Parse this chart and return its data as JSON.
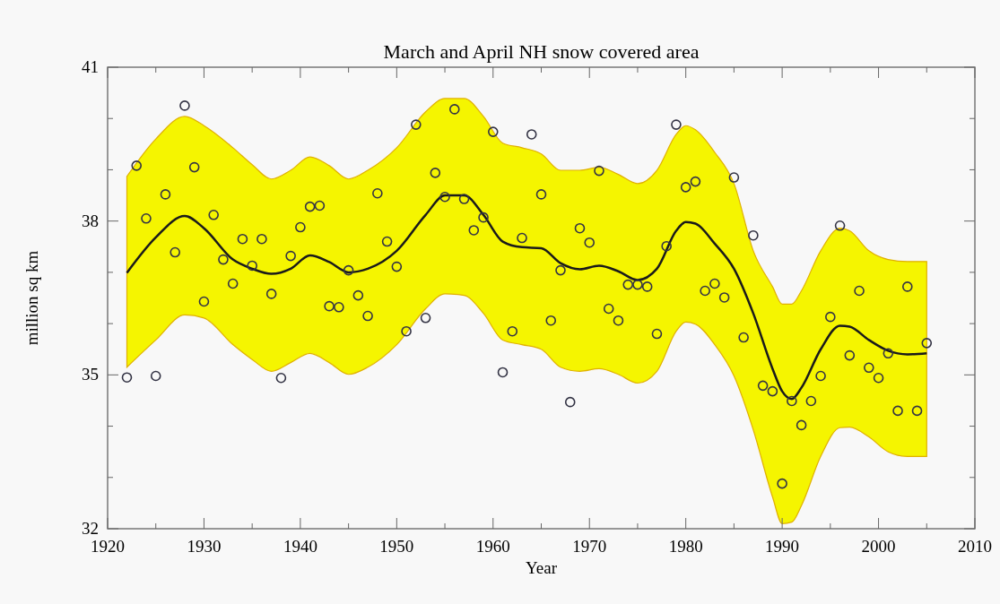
{
  "chart_data": {
    "type": "scatter",
    "title": "March and April NH snow covered area",
    "xlabel": "Year",
    "ylabel": "million sq km",
    "xlim": [
      1920,
      2010
    ],
    "ylim": [
      32,
      41
    ],
    "xticks": [
      1920,
      {
        "value": 1925,
        "label": null
      },
      1930,
      {
        "value": 1935,
        "label": null
      },
      1940,
      {
        "value": 1945,
        "label": null
      },
      1950,
      {
        "value": 1955,
        "label": null
      },
      1960,
      {
        "value": 1965,
        "label": null
      },
      1970,
      {
        "value": 1975,
        "label": null
      },
      1980,
      {
        "value": 1985,
        "label": null
      },
      1990,
      {
        "value": 1995,
        "label": null
      },
      2000,
      {
        "value": 2005,
        "label": null
      },
      2010
    ],
    "yticks": [
      32,
      {
        "value": 33,
        "label": null
      },
      {
        "value": 34,
        "label": null
      },
      35,
      {
        "value": 36,
        "label": null
      },
      {
        "value": 37,
        "label": null
      },
      38,
      {
        "value": 39,
        "label": null
      },
      {
        "value": 40,
        "label": null
      },
      41
    ],
    "grid": false,
    "marker": "circle",
    "series": [
      {
        "type": "line",
        "color": "#1a1a1a",
        "marker": "none",
        "x": [
          1922,
          1925,
          1928,
          1930,
          1933,
          1935,
          1937,
          1939,
          1941,
          1943,
          1945,
          1947,
          1950,
          1953,
          1955,
          1957,
          1959,
          1961,
          1963,
          1965,
          1967,
          1969,
          1971,
          1973,
          1975,
          1977,
          1979,
          1980,
          1981,
          1983,
          1985,
          1987,
          1989,
          1990,
          1991,
          1992,
          1994,
          1996,
          1997,
          1999,
          2001,
          2003,
          2005
        ],
        "values": [
          36.99,
          37.68,
          38.1,
          37.86,
          37.25,
          37.07,
          36.97,
          37.07,
          37.33,
          37.2,
          37.0,
          37.07,
          37.42,
          38.12,
          38.5,
          38.5,
          38.12,
          37.6,
          37.49,
          37.47,
          37.18,
          37.06,
          37.13,
          37.02,
          36.85,
          37.07,
          37.81,
          37.98,
          37.95,
          37.56,
          37.07,
          36.2,
          35.12,
          34.68,
          34.53,
          34.75,
          35.5,
          35.96,
          35.94,
          35.68,
          35.47,
          35.4,
          35.42
        ],
        "upper": [
          38.87,
          39.6,
          40.04,
          39.86,
          39.43,
          39.1,
          38.82,
          38.99,
          39.25,
          39.08,
          38.82,
          38.99,
          39.43,
          40.13,
          40.39,
          40.39,
          40.04,
          39.52,
          39.43,
          39.31,
          38.99,
          38.99,
          39.05,
          38.91,
          38.73,
          38.99,
          39.69,
          39.86,
          39.78,
          39.34,
          38.73,
          37.42,
          36.72,
          36.38,
          36.38,
          36.64,
          37.42,
          37.86,
          37.81,
          37.42,
          37.25,
          37.21,
          37.21
        ],
        "lower": [
          35.15,
          35.68,
          36.17,
          36.11,
          35.59,
          35.3,
          35.07,
          35.24,
          35.42,
          35.24,
          35.01,
          35.15,
          35.59,
          36.29,
          36.58,
          36.55,
          36.2,
          35.68,
          35.59,
          35.5,
          35.15,
          35.07,
          35.12,
          35.01,
          34.84,
          35.07,
          35.85,
          36.03,
          35.99,
          35.59,
          34.98,
          33.93,
          32.62,
          32.1,
          32.13,
          32.45,
          33.41,
          33.97,
          33.98,
          33.79,
          33.5,
          33.41,
          33.41
        ]
      },
      {
        "color": "#333344",
        "x": [
          1922,
          1923,
          1924,
          1925,
          1926,
          1927,
          1928,
          1929,
          1930,
          1931,
          1932,
          1933,
          1934,
          1935,
          1936,
          1937,
          1938,
          1939,
          1940,
          1941,
          1942,
          1943,
          1944,
          1945,
          1946,
          1947,
          1948,
          1949,
          1950,
          1951,
          1952,
          1953,
          1954,
          1955,
          1956,
          1957,
          1958,
          1959,
          1960,
          1961,
          1962,
          1963,
          1964,
          1965,
          1966,
          1967,
          1968,
          1969,
          1970,
          1971,
          1972,
          1973,
          1974,
          1975,
          1976,
          1977,
          1978,
          1979,
          1980,
          1981,
          1982,
          1983,
          1984,
          1985,
          1986,
          1987,
          1988,
          1989,
          1990,
          1991,
          1992,
          1993,
          1994,
          1995,
          1996,
          1997,
          1998,
          1999,
          2000,
          2001,
          2002,
          2003,
          2004,
          2005
        ],
        "values": [
          34.95,
          39.08,
          38.05,
          34.98,
          38.52,
          37.39,
          40.25,
          39.05,
          36.43,
          38.12,
          37.25,
          36.78,
          37.65,
          37.13,
          37.65,
          36.58,
          34.94,
          37.32,
          37.88,
          38.28,
          38.3,
          36.34,
          36.32,
          37.04,
          36.55,
          36.15,
          38.54,
          37.6,
          37.11,
          35.85,
          39.88,
          36.11,
          38.94,
          38.47,
          40.18,
          38.43,
          37.82,
          38.07,
          39.74,
          35.05,
          35.85,
          37.67,
          39.69,
          38.52,
          36.06,
          37.04,
          34.47,
          37.86,
          37.58,
          38.98,
          36.29,
          36.06,
          36.76,
          36.76,
          36.72,
          35.8,
          37.51,
          39.88,
          38.66,
          38.77,
          36.64,
          36.78,
          36.51,
          38.85,
          35.73,
          37.72,
          34.79,
          34.68,
          32.88,
          34.49,
          34.02,
          34.49,
          34.98,
          36.13,
          37.91,
          35.38,
          36.64,
          35.14,
          34.94,
          35.42,
          34.3,
          36.72,
          34.3,
          35.62
        ]
      }
    ]
  }
}
